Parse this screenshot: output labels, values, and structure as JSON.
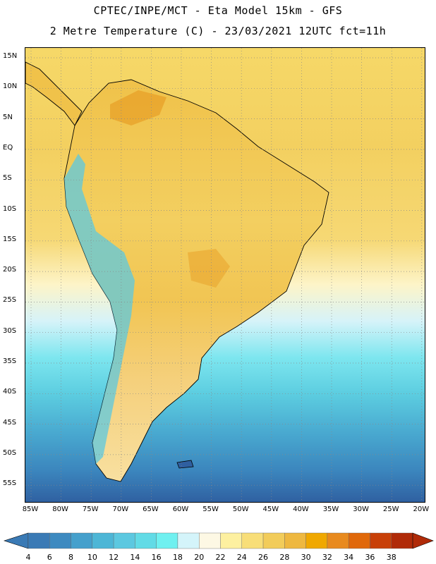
{
  "header": {
    "line1": "CPTEC/INPE/MCT -  Eta Model 15km - GFS",
    "line2": "2 Metre Temperature (C) - 23/03/2021 12UTC fct=11h"
  },
  "map": {
    "lat_labels": [
      "15N",
      "10N",
      "5N",
      "EQ",
      "5S",
      "10S",
      "15S",
      "20S",
      "25S",
      "30S",
      "35S",
      "40S",
      "45S",
      "50S",
      "55S"
    ],
    "lon_labels": [
      "85W",
      "80W",
      "75W",
      "70W",
      "65W",
      "60W",
      "55W",
      "50W",
      "45W",
      "40W",
      "35W",
      "30W",
      "25W",
      "20W"
    ]
  },
  "colorbar": {
    "labels": [
      "4",
      "6",
      "8",
      "10",
      "12",
      "14",
      "16",
      "18",
      "20",
      "22",
      "24",
      "26",
      "28",
      "30",
      "32",
      "34",
      "36",
      "38"
    ],
    "colors": [
      "#3a7ab5",
      "#3d8ac0",
      "#45a0cc",
      "#4db6d6",
      "#5cc8e0",
      "#62dbe6",
      "#6ff0f0",
      "#d4f4fa",
      "#fdf8e4",
      "#fdf0a0",
      "#f8de78",
      "#f2cc5a",
      "#eeb840",
      "#f0a800",
      "#e88a1e",
      "#e0680a",
      "#c84008",
      "#b02a08"
    ]
  },
  "icons": {
    "left_arrow": "colorbar-low-arrow-icon",
    "right_arrow": "colorbar-high-arrow-icon"
  }
}
